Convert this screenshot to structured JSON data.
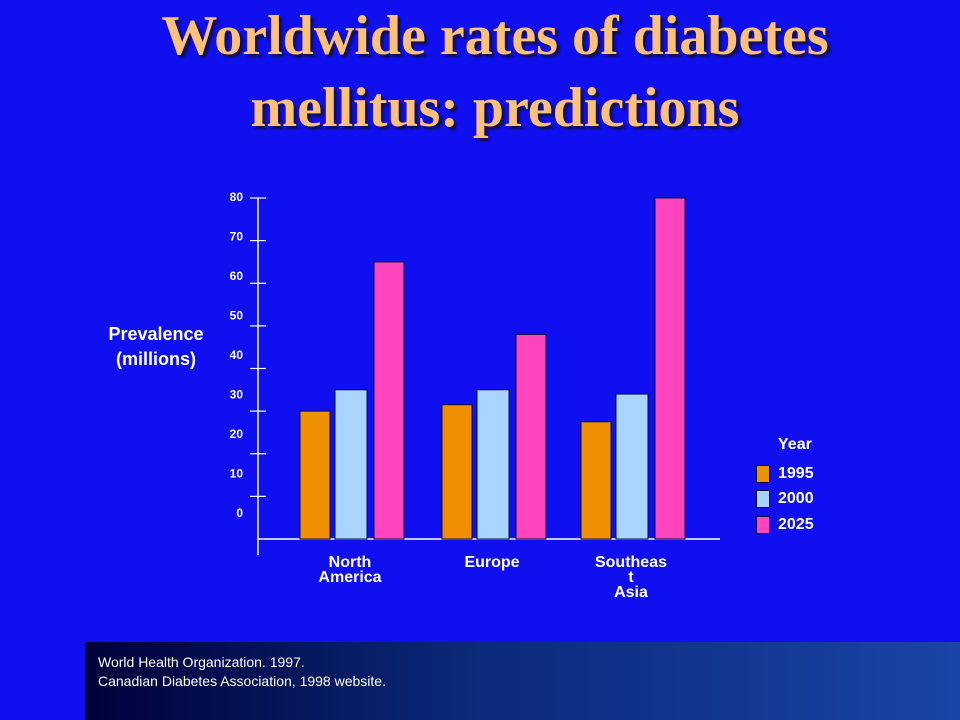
{
  "title_lines": [
    "Worldwide rates of diabetes",
    "mellitus: predictions"
  ],
  "chart_data": {
    "type": "bar",
    "title": "Worldwide rates of diabetes mellitus: predictions",
    "ylabel_lines": [
      "Prevalence",
      "(millions)"
    ],
    "categories": [
      [
        "North",
        "America"
      ],
      [
        "Europe"
      ],
      [
        "Southeas",
        "t",
        "Asia"
      ]
    ],
    "series": [
      {
        "name": "1995",
        "color": "#f09000",
        "values": [
          30,
          31.5,
          27.5
        ]
      },
      {
        "name": "2000",
        "color": "#a8d4ff",
        "values": [
          35,
          35,
          34
        ]
      },
      {
        "name": "2025",
        "color": "#ff44c0",
        "values": [
          65,
          48,
          80
        ]
      }
    ],
    "ylim": [
      0,
      80
    ],
    "yticks": [
      0,
      10,
      20,
      30,
      40,
      50,
      60,
      70,
      80
    ],
    "legend_title": "Year",
    "legend_position": "right",
    "grid": false
  },
  "footer": {
    "line1": "World Health Organization. 1997.",
    "line2": "Canadian Diabetes Association, 1998 website."
  }
}
